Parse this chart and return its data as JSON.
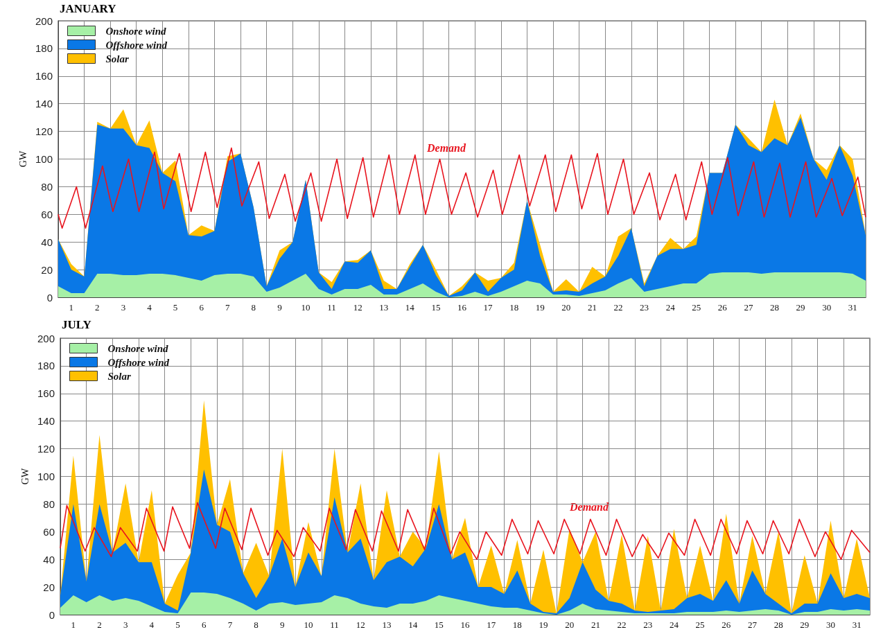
{
  "chart_data": [
    {
      "type": "area",
      "title": "JANUARY",
      "ylabel": "GW",
      "xlim": [
        0,
        31
      ],
      "ylim": [
        0,
        200
      ],
      "yticks": [
        0,
        20,
        40,
        60,
        80,
        100,
        120,
        140,
        160,
        180,
        200
      ],
      "grid": true,
      "legend": "top left",
      "stacked": true,
      "xticks": [
        {
          "value": 0.5,
          "label": "1"
        },
        {
          "value": 1,
          "label": null
        },
        {
          "value": 1.5,
          "label": "2"
        },
        {
          "value": 2,
          "label": null
        },
        {
          "value": 2.5,
          "label": "3"
        },
        {
          "value": 3,
          "label": null
        },
        {
          "value": 3.5,
          "label": "4"
        },
        {
          "value": 4,
          "label": null
        },
        {
          "value": 4.5,
          "label": "5"
        },
        {
          "value": 5,
          "label": null
        },
        {
          "value": 5.5,
          "label": "6"
        },
        {
          "value": 6,
          "label": null
        },
        {
          "value": 6.5,
          "label": "7"
        },
        {
          "value": 7,
          "label": null
        },
        {
          "value": 7.5,
          "label": "8"
        },
        {
          "value": 8,
          "label": null
        },
        {
          "value": 8.5,
          "label": "9"
        },
        {
          "value": 9,
          "label": null
        },
        {
          "value": 9.5,
          "label": "10"
        },
        {
          "value": 10,
          "label": null
        },
        {
          "value": 10.5,
          "label": "11"
        },
        {
          "value": 11,
          "label": null
        },
        {
          "value": 11.5,
          "label": "12"
        },
        {
          "value": 12,
          "label": null
        },
        {
          "value": 12.5,
          "label": "13"
        },
        {
          "value": 13,
          "label": null
        },
        {
          "value": 13.5,
          "label": "14"
        },
        {
          "value": 14,
          "label": null
        },
        {
          "value": 14.5,
          "label": "15"
        },
        {
          "value": 15,
          "label": null
        },
        {
          "value": 15.5,
          "label": "16"
        },
        {
          "value": 16,
          "label": null
        },
        {
          "value": 16.5,
          "label": "17"
        },
        {
          "value": 17,
          "label": null
        },
        {
          "value": 17.5,
          "label": "18"
        },
        {
          "value": 18,
          "label": null
        },
        {
          "value": 18.5,
          "label": "19"
        },
        {
          "value": 19,
          "label": null
        },
        {
          "value": 19.5,
          "label": "20"
        },
        {
          "value": 20,
          "label": null
        },
        {
          "value": 20.5,
          "label": "21"
        },
        {
          "value": 21,
          "label": null
        },
        {
          "value": 21.5,
          "label": "22"
        },
        {
          "value": 22,
          "label": null
        },
        {
          "value": 22.5,
          "label": "23"
        },
        {
          "value": 23,
          "label": null
        },
        {
          "value": 23.5,
          "label": "24"
        },
        {
          "value": 24,
          "label": null
        },
        {
          "value": 24.5,
          "label": "25"
        },
        {
          "value": 25,
          "label": null
        },
        {
          "value": 25.5,
          "label": "26"
        },
        {
          "value": 26,
          "label": null
        },
        {
          "value": 26.5,
          "label": "27"
        },
        {
          "value": 27,
          "label": null
        },
        {
          "value": 27.5,
          "label": "28"
        },
        {
          "value": 28,
          "label": null
        },
        {
          "value": 28.5,
          "label": "29"
        },
        {
          "value": 29,
          "label": null
        },
        {
          "value": 29.5,
          "label": "30"
        },
        {
          "value": 30,
          "label": null
        },
        {
          "value": 30.5,
          "label": "31"
        }
      ],
      "x": [
        0,
        0.5,
        1,
        1.5,
        2,
        2.5,
        3,
        3.5,
        4,
        4.5,
        5,
        5.5,
        6,
        6.5,
        7,
        7.5,
        8,
        8.5,
        9,
        9.5,
        10,
        10.5,
        11,
        11.5,
        12,
        12.5,
        13,
        13.5,
        14,
        14.5,
        15,
        15.5,
        16,
        16.5,
        17,
        17.5,
        18,
        18.5,
        19,
        19.5,
        20,
        20.5,
        21,
        21.5,
        22,
        22.5,
        23,
        23.5,
        24,
        24.5,
        25,
        25.5,
        26,
        26.5,
        27,
        27.5,
        28,
        28.5,
        29,
        29.5,
        30,
        30.5,
        31
      ],
      "series": [
        {
          "name": "Onshore wind",
          "color": "#a6f0a6",
          "values": [
            8,
            3,
            3,
            17,
            17,
            16,
            16,
            17,
            17,
            16,
            14,
            12,
            16,
            17,
            17,
            15,
            4,
            7,
            12,
            17,
            6,
            2,
            6,
            6,
            9,
            2,
            2,
            6,
            10,
            4,
            0,
            1,
            4,
            1,
            4,
            8,
            12,
            10,
            2,
            2,
            1,
            3,
            5,
            10,
            14,
            4,
            6,
            8,
            10,
            10,
            17,
            18,
            18,
            18,
            17,
            18,
            18,
            18,
            18,
            18,
            18,
            17,
            12
          ]
        },
        {
          "name": "Offshore wind",
          "color": "#0a78e6",
          "values": [
            34,
            17,
            12,
            108,
            105,
            106,
            94,
            91,
            73,
            68,
            31,
            32,
            32,
            81,
            87,
            50,
            4,
            21,
            28,
            68,
            12,
            4,
            20,
            19,
            25,
            4,
            4,
            16,
            28,
            12,
            1,
            4,
            14,
            3,
            10,
            12,
            58,
            20,
            2,
            3,
            3,
            7,
            10,
            20,
            36,
            4,
            24,
            27,
            25,
            28,
            73,
            72,
            107,
            92,
            88,
            97,
            92,
            112,
            82,
            67,
            92,
            71,
            33
          ]
        },
        {
          "name": "Solar",
          "color": "#ffc000",
          "values": [
            0,
            4,
            0,
            2,
            0,
            14,
            0,
            20,
            0,
            15,
            0,
            8,
            0,
            4,
            0,
            0,
            0,
            6,
            0,
            0,
            0,
            5,
            0,
            2,
            0,
            6,
            0,
            2,
            0,
            4,
            0,
            3,
            0,
            8,
            0,
            5,
            0,
            8,
            0,
            8,
            0,
            12,
            0,
            14,
            0,
            2,
            0,
            8,
            0,
            6,
            0,
            0,
            0,
            5,
            0,
            28,
            0,
            3,
            0,
            7,
            0,
            12,
            0
          ]
        },
        {
          "type": "line",
          "name": "Demand",
          "color": "#e8141e",
          "x": [
            0,
            0.15,
            0.7,
            1.05,
            1.7,
            2.1,
            2.7,
            3.1,
            3.7,
            4.05,
            4.65,
            5.1,
            5.65,
            6.1,
            6.65,
            7.05,
            7.7,
            8.1,
            8.7,
            9.1,
            9.7,
            10.1,
            10.7,
            11.1,
            11.7,
            12.1,
            12.7,
            13.1,
            13.7,
            14.1,
            14.65,
            15.1,
            15.65,
            16.1,
            16.7,
            17.05,
            17.7,
            18.1,
            18.7,
            19.1,
            19.7,
            20.1,
            20.7,
            21.1,
            21.7,
            22.1,
            22.7,
            23.1,
            23.7,
            24.1,
            24.7,
            25.1,
            25.7,
            26.1,
            26.7,
            27.1,
            27.7,
            28.1,
            28.7,
            29.1,
            29.7,
            30.1,
            30.7,
            31
          ],
          "values": [
            60,
            50,
            80,
            50,
            95,
            62,
            100,
            62,
            105,
            64,
            104,
            62,
            105,
            65,
            108,
            66,
            98,
            57,
            89,
            55,
            90,
            55,
            100,
            57,
            101,
            58,
            103,
            60,
            103,
            60,
            100,
            60,
            90,
            58,
            92,
            60,
            103,
            66,
            103,
            62,
            103,
            64,
            104,
            60,
            100,
            60,
            90,
            56,
            89,
            56,
            98,
            60,
            101,
            59,
            98,
            58,
            97,
            58,
            98,
            58,
            86,
            59,
            87,
            58
          ]
        }
      ]
    },
    {
      "type": "area",
      "title": "JULY",
      "ylabel": "GW",
      "xlim": [
        0,
        31
      ],
      "ylim": [
        0,
        200
      ],
      "yticks": [
        0,
        20,
        40,
        60,
        80,
        100,
        120,
        140,
        160,
        180,
        200
      ],
      "grid": true,
      "legend": "top left",
      "stacked": true,
      "xticks": [
        {
          "value": 0.5,
          "label": "1"
        },
        {
          "value": 1,
          "label": null
        },
        {
          "value": 1.5,
          "label": "2"
        },
        {
          "value": 2,
          "label": null
        },
        {
          "value": 2.5,
          "label": "3"
        },
        {
          "value": 3,
          "label": null
        },
        {
          "value": 3.5,
          "label": "4"
        },
        {
          "value": 4,
          "label": null
        },
        {
          "value": 4.5,
          "label": "5"
        },
        {
          "value": 5,
          "label": null
        },
        {
          "value": 5.5,
          "label": "6"
        },
        {
          "value": 6,
          "label": null
        },
        {
          "value": 6.5,
          "label": "7"
        },
        {
          "value": 7,
          "label": null
        },
        {
          "value": 7.5,
          "label": "8"
        },
        {
          "value": 8,
          "label": null
        },
        {
          "value": 8.5,
          "label": "9"
        },
        {
          "value": 9,
          "label": null
        },
        {
          "value": 9.5,
          "label": "10"
        },
        {
          "value": 10,
          "label": null
        },
        {
          "value": 10.5,
          "label": "11"
        },
        {
          "value": 11,
          "label": null
        },
        {
          "value": 11.5,
          "label": "12"
        },
        {
          "value": 12,
          "label": null
        },
        {
          "value": 12.5,
          "label": "13"
        },
        {
          "value": 13,
          "label": null
        },
        {
          "value": 13.5,
          "label": "14"
        },
        {
          "value": 14,
          "label": null
        },
        {
          "value": 14.5,
          "label": "15"
        },
        {
          "value": 15,
          "label": null
        },
        {
          "value": 15.5,
          "label": "16"
        },
        {
          "value": 16,
          "label": null
        },
        {
          "value": 16.5,
          "label": "17"
        },
        {
          "value": 17,
          "label": null
        },
        {
          "value": 17.5,
          "label": "18"
        },
        {
          "value": 18,
          "label": null
        },
        {
          "value": 18.5,
          "label": "19"
        },
        {
          "value": 19,
          "label": null
        },
        {
          "value": 19.5,
          "label": "20"
        },
        {
          "value": 20,
          "label": null
        },
        {
          "value": 20.5,
          "label": "21"
        },
        {
          "value": 21,
          "label": null
        },
        {
          "value": 21.5,
          "label": "22"
        },
        {
          "value": 22,
          "label": null
        },
        {
          "value": 22.5,
          "label": "23"
        },
        {
          "value": 23,
          "label": null
        },
        {
          "value": 23.5,
          "label": "24"
        },
        {
          "value": 24,
          "label": null
        },
        {
          "value": 24.5,
          "label": "25"
        },
        {
          "value": 25,
          "label": null
        },
        {
          "value": 25.5,
          "label": "26"
        },
        {
          "value": 26,
          "label": null
        },
        {
          "value": 26.5,
          "label": "27"
        },
        {
          "value": 27,
          "label": null
        },
        {
          "value": 27.5,
          "label": "28"
        },
        {
          "value": 28,
          "label": null
        },
        {
          "value": 28.5,
          "label": "29"
        },
        {
          "value": 29,
          "label": null
        },
        {
          "value": 29.5,
          "label": "30"
        },
        {
          "value": 30,
          "label": null
        },
        {
          "value": 30.5,
          "label": "31"
        }
      ],
      "x": [
        0,
        0.5,
        1,
        1.5,
        2,
        2.5,
        3,
        3.5,
        4,
        4.5,
        5,
        5.5,
        6,
        6.5,
        7,
        7.5,
        8,
        8.5,
        9,
        9.5,
        10,
        10.5,
        11,
        11.5,
        12,
        12.5,
        13,
        13.5,
        14,
        14.5,
        15,
        15.5,
        16,
        16.5,
        17,
        17.5,
        18,
        18.5,
        19,
        19.5,
        20,
        20.5,
        21,
        21.5,
        22,
        22.5,
        23,
        23.5,
        24,
        24.5,
        25,
        25.5,
        26,
        26.5,
        27,
        27.5,
        28,
        28.5,
        29,
        29.5,
        30,
        30.5,
        31
      ],
      "series": [
        {
          "name": "Onshore wind",
          "color": "#a6f0a6",
          "values": [
            5,
            14,
            9,
            14,
            10,
            12,
            10,
            6,
            2,
            1,
            16,
            16,
            15,
            12,
            8,
            3,
            8,
            9,
            7,
            8,
            9,
            14,
            12,
            8,
            6,
            5,
            8,
            8,
            10,
            14,
            12,
            10,
            8,
            6,
            5,
            5,
            3,
            1,
            0,
            3,
            8,
            4,
            3,
            2,
            1,
            1,
            1,
            1,
            2,
            2,
            2,
            3,
            2,
            3,
            4,
            3,
            0,
            2,
            2,
            4,
            3,
            4,
            3
          ]
        },
        {
          "name": "Offshore wind",
          "color": "#0a78e6",
          "values": [
            9,
            66,
            15,
            66,
            35,
            40,
            28,
            32,
            6,
            2,
            29,
            89,
            50,
            48,
            22,
            9,
            20,
            46,
            13,
            37,
            19,
            71,
            33,
            47,
            19,
            33,
            34,
            27,
            38,
            66,
            28,
            35,
            12,
            14,
            10,
            27,
            5,
            1,
            1,
            9,
            30,
            14,
            7,
            6,
            2,
            1,
            2,
            3,
            10,
            13,
            8,
            22,
            6,
            29,
            11,
            5,
            1,
            6,
            6,
            26,
            9,
            11,
            9
          ]
        },
        {
          "name": "Solar",
          "color": "#ffc000",
          "values": [
            0,
            35,
            0,
            50,
            0,
            43,
            0,
            52,
            0,
            26,
            0,
            50,
            0,
            38,
            0,
            40,
            0,
            65,
            0,
            22,
            0,
            35,
            0,
            40,
            0,
            52,
            0,
            25,
            0,
            38,
            0,
            25,
            0,
            30,
            0,
            22,
            0,
            45,
            0,
            50,
            0,
            42,
            0,
            50,
            0,
            55,
            0,
            58,
            0,
            35,
            0,
            48,
            0,
            25,
            0,
            52,
            0,
            35,
            0,
            38,
            0,
            40,
            0
          ]
        },
        {
          "type": "line",
          "name": "Demand",
          "color": "#e8141e",
          "x": [
            0,
            0.25,
            0.95,
            1.3,
            1.95,
            2.3,
            2.95,
            3.3,
            3.97,
            4.3,
            4.95,
            5.25,
            5.95,
            6.3,
            6.95,
            7.3,
            7.95,
            8.3,
            8.95,
            9.3,
            9.95,
            10.3,
            10.95,
            11.3,
            11.95,
            12.3,
            12.95,
            13.3,
            13.95,
            14.3,
            14.95,
            15.3,
            15.95,
            16.3,
            16.9,
            17.3,
            17.9,
            18.3,
            18.9,
            19.3,
            19.9,
            20.3,
            20.9,
            21.3,
            21.9,
            22.3,
            22.9,
            23.3,
            23.9,
            24.3,
            24.9,
            25.3,
            25.9,
            26.3,
            26.9,
            27.3,
            27.9,
            28.3,
            28.9,
            29.3,
            29.9,
            30.3,
            31
          ],
          "values": [
            48,
            79,
            46,
            63,
            42,
            63,
            46,
            77,
            46,
            78,
            48,
            81,
            48,
            77,
            47,
            77,
            43,
            61,
            42,
            63,
            46,
            77,
            47,
            76,
            46,
            75,
            46,
            76,
            47,
            77,
            44,
            60,
            40,
            60,
            43,
            69,
            44,
            68,
            44,
            69,
            44,
            69,
            43,
            69,
            42,
            58,
            41,
            59,
            43,
            69,
            43,
            69,
            44,
            68,
            44,
            68,
            44,
            69,
            42,
            60,
            40,
            61,
            45
          ]
        }
      ]
    }
  ]
}
